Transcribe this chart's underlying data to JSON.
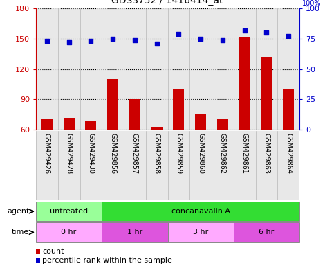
{
  "title": "GDS3752 / 1416414_at",
  "samples": [
    "GSM429426",
    "GSM429428",
    "GSM429430",
    "GSM429856",
    "GSM429857",
    "GSM429858",
    "GSM429859",
    "GSM429860",
    "GSM429862",
    "GSM429861",
    "GSM429863",
    "GSM429864"
  ],
  "counts": [
    70,
    72,
    68,
    110,
    90,
    63,
    100,
    76,
    70,
    151,
    132,
    100
  ],
  "percentiles": [
    73,
    72,
    73,
    75,
    74,
    71,
    79,
    75,
    74,
    82,
    80,
    77
  ],
  "ylim_left": [
    60,
    180
  ],
  "ylim_right": [
    0,
    100
  ],
  "yticks_left": [
    60,
    90,
    120,
    150,
    180
  ],
  "yticks_right": [
    0,
    25,
    50,
    75,
    100
  ],
  "bar_color": "#cc0000",
  "dot_color": "#0000cc",
  "col_bg": "#cccccc",
  "agent_groups": [
    {
      "label": "untreated",
      "start": 0,
      "end": 3,
      "color": "#99ff99"
    },
    {
      "label": "concanavalin A",
      "start": 3,
      "end": 12,
      "color": "#33dd33"
    }
  ],
  "time_groups": [
    {
      "label": "0 hr",
      "start": 0,
      "end": 3,
      "color": "#ffaaff"
    },
    {
      "label": "1 hr",
      "start": 3,
      "end": 6,
      "color": "#dd55dd"
    },
    {
      "label": "3 hr",
      "start": 6,
      "end": 9,
      "color": "#ffaaff"
    },
    {
      "label": "6 hr",
      "start": 9,
      "end": 12,
      "color": "#dd55dd"
    }
  ],
  "xlabel_agent": "agent",
  "xlabel_time": "time",
  "legend_count": "count",
  "legend_percentile": "percentile rank within the sample"
}
